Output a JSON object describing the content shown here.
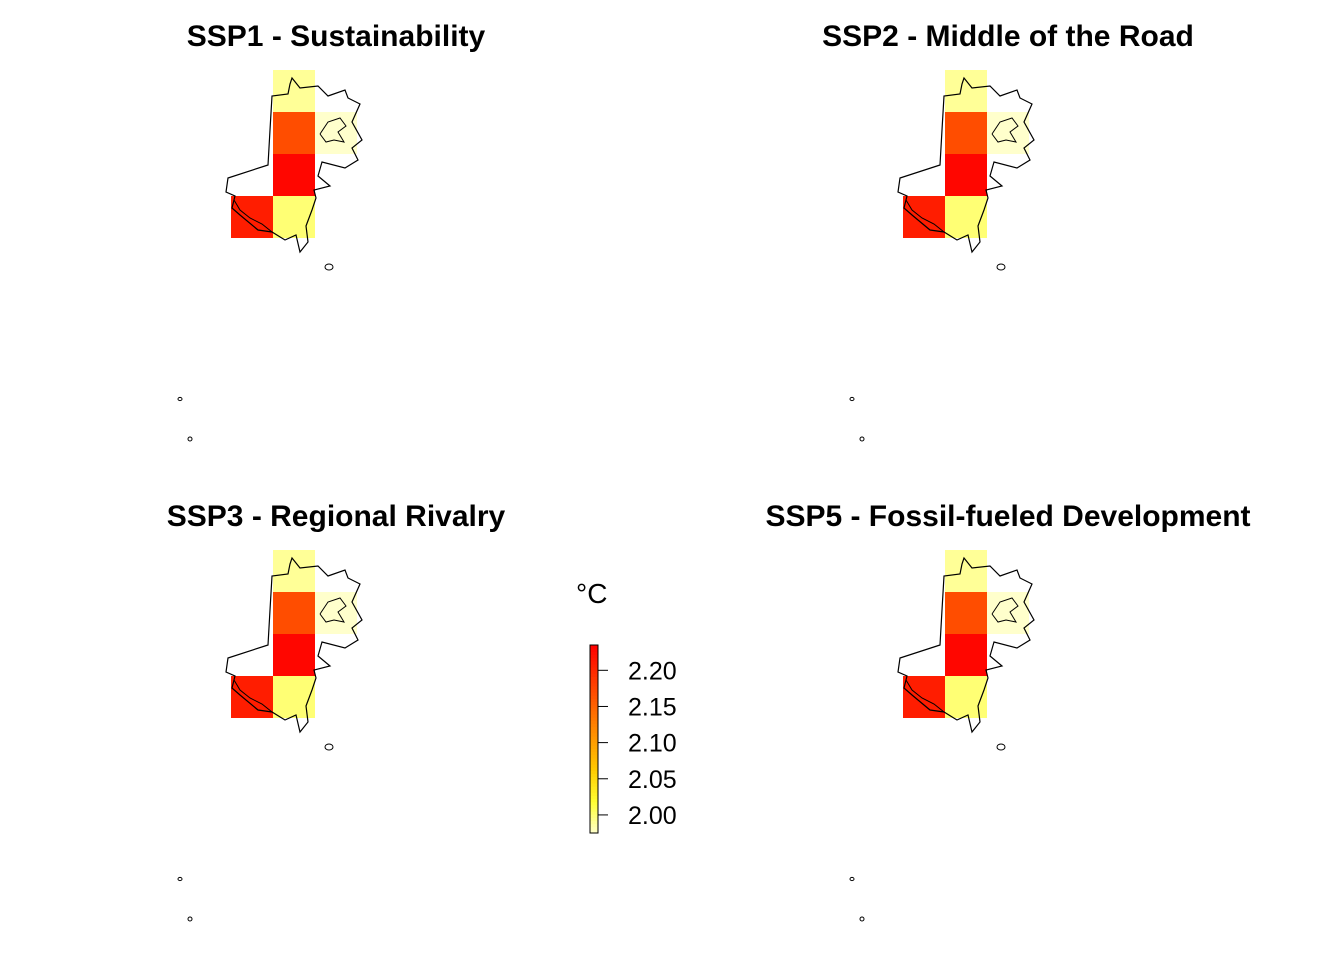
{
  "panels": [
    {
      "title": "SSP1 - Sustainability"
    },
    {
      "title": "SSP2 - Middle of the Road"
    },
    {
      "title": "SSP3 - Regional Rivalry"
    },
    {
      "title": "SSP5 - Fossil-fueled Development"
    }
  ],
  "raster": {
    "description_cells": [
      {
        "row": 0,
        "col": 1,
        "value": 1.99
      },
      {
        "row": 1,
        "col": 1,
        "value": 2.17
      },
      {
        "row": 1,
        "col": 2,
        "value": 1.975
      },
      {
        "row": 2,
        "col": 1,
        "value": 2.23
      },
      {
        "row": 3,
        "col": 0,
        "value": 2.21
      },
      {
        "row": 3,
        "col": 1,
        "value": 2.0
      }
    ]
  },
  "legend": {
    "title": "°C",
    "range": [
      1.975,
      2.235
    ],
    "ticks": [
      {
        "value": 2.2,
        "label": "2.20"
      },
      {
        "value": 2.15,
        "label": "2.15"
      },
      {
        "value": 2.1,
        "label": "2.10"
      },
      {
        "value": 2.05,
        "label": "2.05"
      },
      {
        "value": 2.0,
        "label": "2.00"
      }
    ],
    "palette": [
      "#FFFFCC",
      "#FFFF33",
      "#FFCC00",
      "#FF9900",
      "#FF6600",
      "#FF3300",
      "#FF0000"
    ]
  },
  "colors": {
    "outline": "#000000",
    "background": "#FFFFFF"
  }
}
